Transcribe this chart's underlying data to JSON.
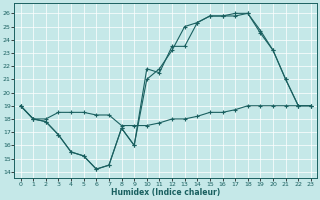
{
  "xlabel": "Humidex (Indice chaleur)",
  "bg_color": "#c5e8e8",
  "line_color": "#1a6060",
  "xlim": [
    -0.5,
    23.5
  ],
  "ylim": [
    13.5,
    26.8
  ],
  "yticks": [
    14,
    15,
    16,
    17,
    18,
    19,
    20,
    21,
    22,
    23,
    24,
    25,
    26
  ],
  "xticks": [
    0,
    1,
    2,
    3,
    4,
    5,
    6,
    7,
    8,
    9,
    10,
    11,
    12,
    13,
    14,
    15,
    16,
    17,
    18,
    19,
    20,
    21,
    22,
    23
  ],
  "line_min_x": [
    0,
    1,
    2,
    3,
    4,
    5,
    6,
    7,
    8,
    9,
    10,
    11,
    12,
    13,
    14,
    15,
    16,
    17,
    18,
    19,
    20,
    21,
    22,
    23
  ],
  "line_min_y": [
    19,
    18,
    18,
    18.5,
    18.5,
    18.5,
    18.3,
    18.3,
    17.5,
    17.5,
    17.5,
    17.7,
    18.0,
    18.0,
    18.2,
    18.5,
    18.5,
    18.7,
    19.0,
    19.0,
    19.0,
    19.0,
    19.0,
    19.0
  ],
  "line_dip_x": [
    0,
    1,
    2,
    3,
    4,
    5,
    6,
    7,
    8,
    9,
    10,
    11,
    12,
    13,
    14,
    15,
    16,
    17,
    18,
    19,
    20,
    21,
    22,
    23
  ],
  "line_dip_y": [
    19,
    18,
    17.8,
    16.8,
    15.5,
    15.2,
    14.2,
    14.5,
    17.3,
    16.0,
    21.8,
    21.5,
    23.5,
    23.5,
    25.3,
    25.8,
    25.8,
    25.8,
    26.0,
    24.7,
    23.2,
    21.0,
    19.0,
    19.0
  ],
  "line_top_x": [
    0,
    1,
    2,
    3,
    4,
    5,
    6,
    7,
    8,
    9,
    10,
    11,
    12,
    13,
    14,
    15,
    16,
    17,
    18,
    19,
    20,
    21,
    22,
    23
  ],
  "line_top_y": [
    19,
    18,
    17.8,
    16.8,
    15.5,
    15.2,
    14.2,
    14.5,
    17.3,
    16.0,
    21.0,
    21.8,
    23.2,
    25.0,
    25.3,
    25.8,
    25.8,
    26.0,
    26.0,
    24.5,
    23.2,
    21.0,
    19.0,
    19.0
  ]
}
